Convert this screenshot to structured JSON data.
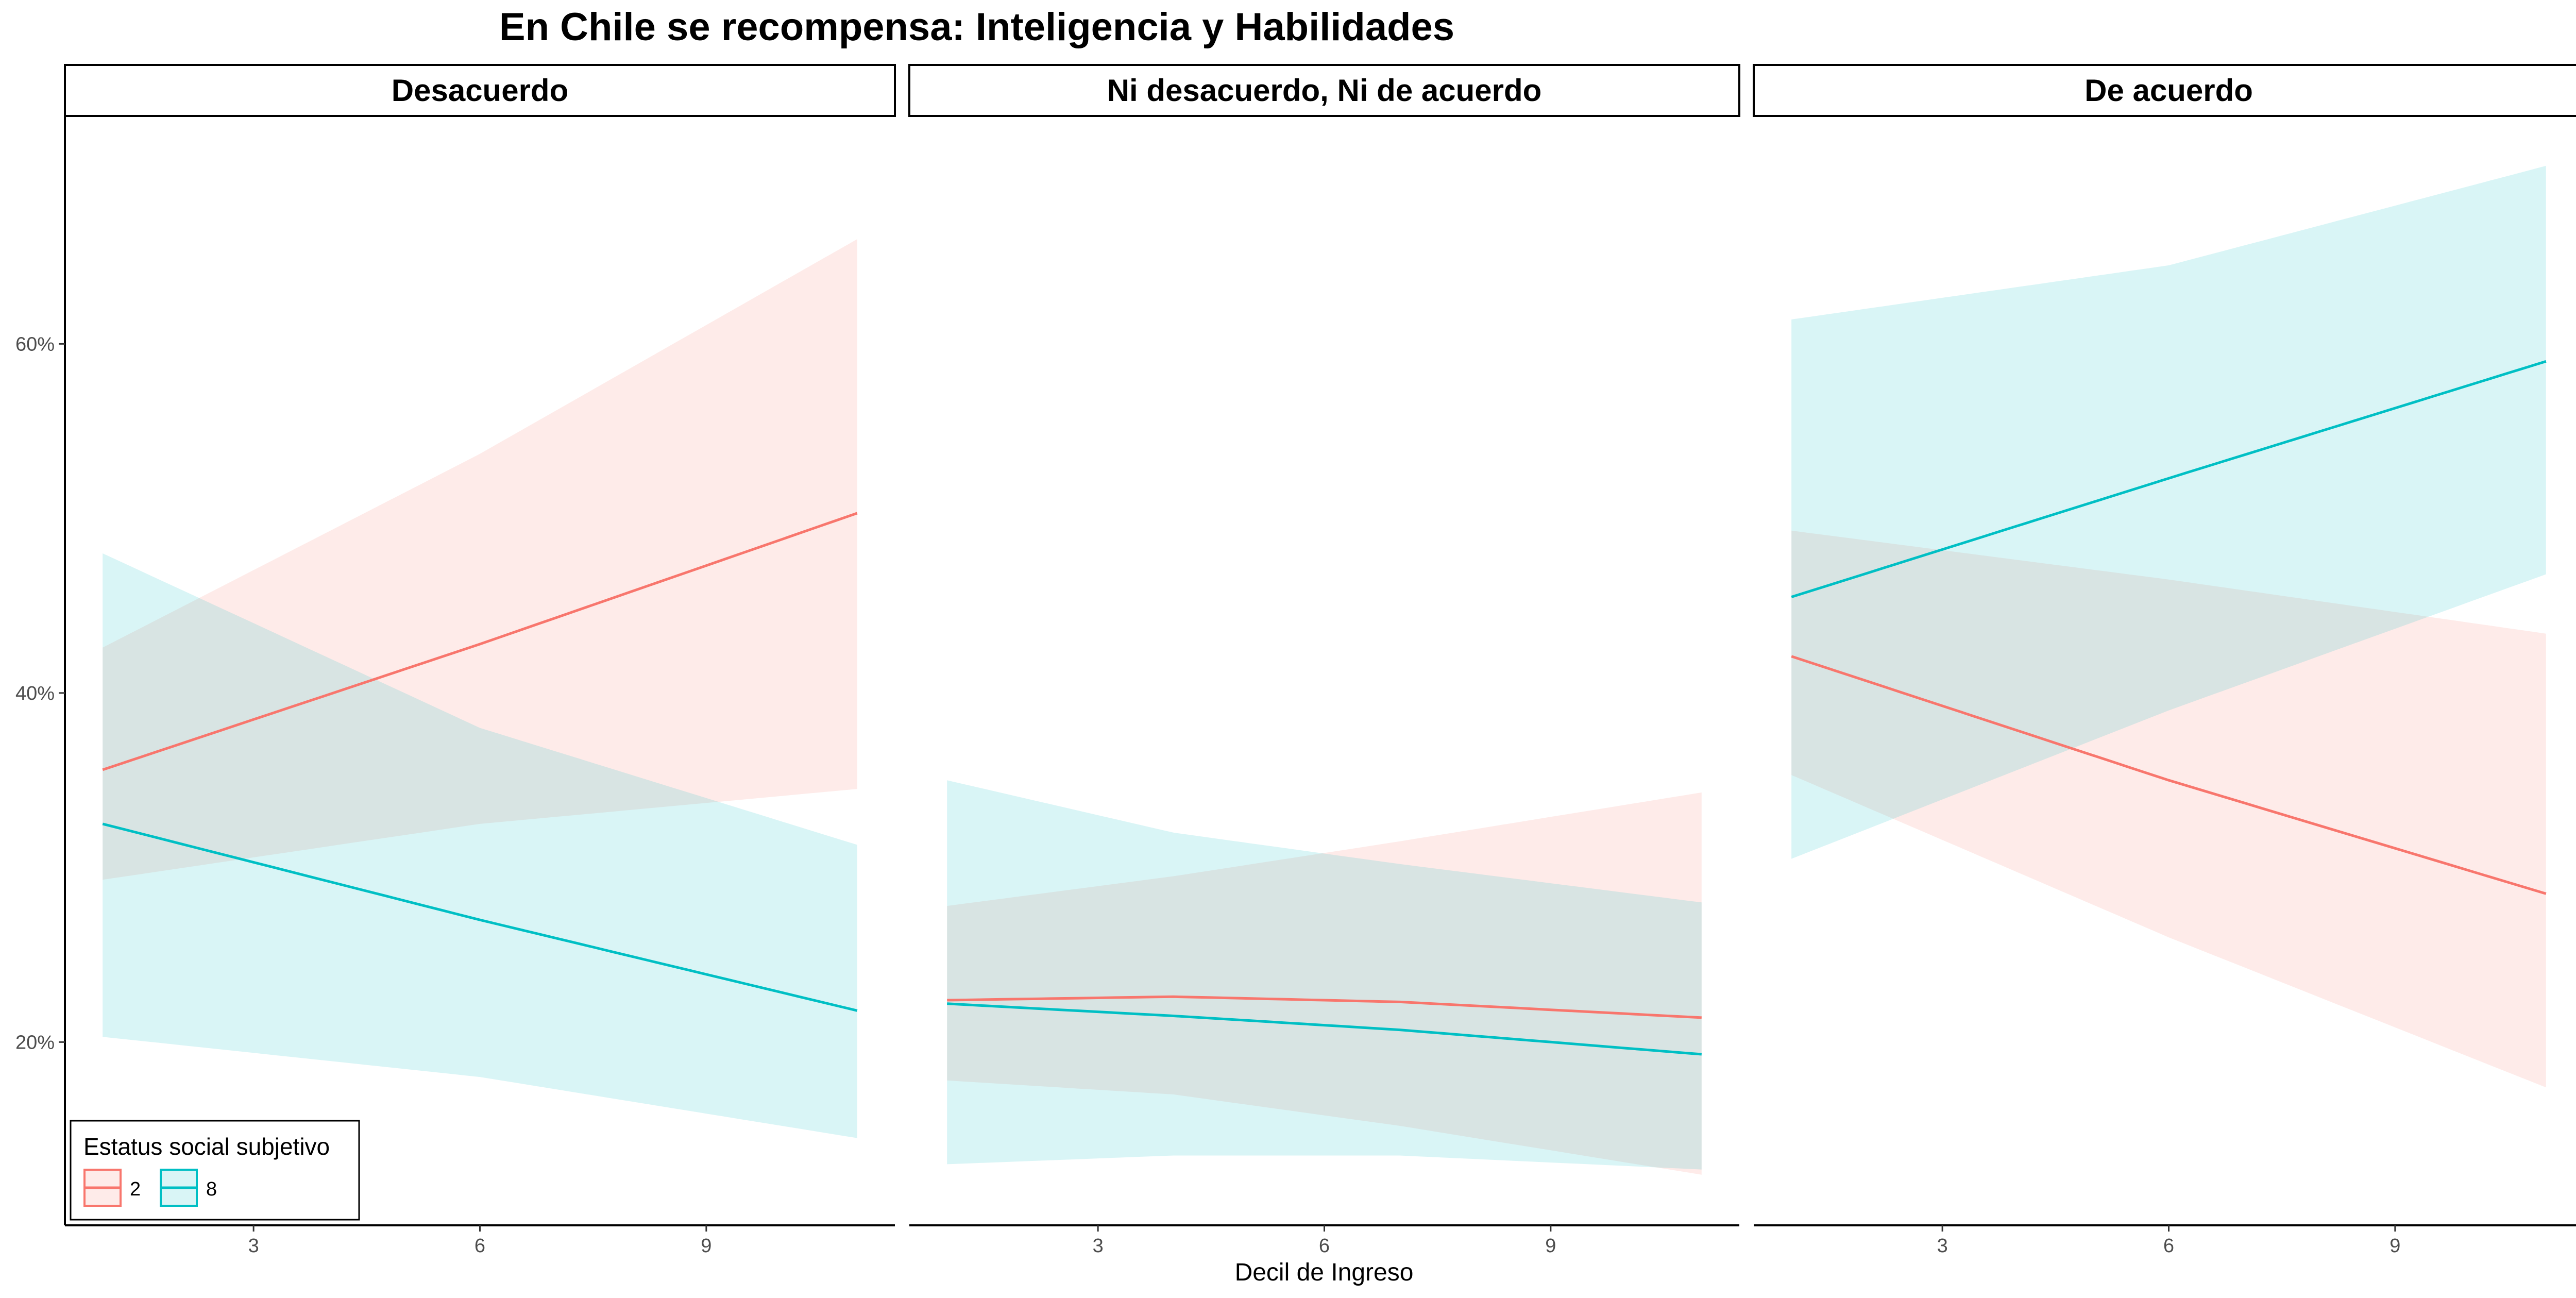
{
  "chart_data": {
    "type": "line",
    "title": "En Chile se recompensa: Inteligencia y Habilidades",
    "xlabel": "Decil de Ingreso",
    "ylabel": "",
    "x_ticks": [
      3,
      6,
      9
    ],
    "y_ticks": [
      0.2,
      0.4,
      0.6
    ],
    "y_tick_labels": [
      "20%",
      "40%",
      "60%"
    ],
    "xlim": [
      0.5,
      11.5
    ],
    "ylim": [
      0.095,
      0.73
    ],
    "grid": false,
    "legend": {
      "title": "Estatus social subjetivo",
      "position": "bottom-left",
      "entries": [
        "2",
        "8"
      ]
    },
    "colors": {
      "2": "#F8766D",
      "8": "#00BFC4"
    },
    "ribbon_alpha": 0.15,
    "facets": [
      {
        "label": "Desacuerdo",
        "series": [
          {
            "name": "2",
            "x": [
              1,
              6,
              11
            ],
            "y": [
              0.356,
              0.428,
              0.503
            ],
            "lower": [
              0.293,
              0.325,
              0.345
            ],
            "upper": [
              0.426,
              0.537,
              0.66
            ]
          },
          {
            "name": "8",
            "x": [
              1,
              6,
              11
            ],
            "y": [
              0.325,
              0.27,
              0.218
            ],
            "lower": [
              0.203,
              0.18,
              0.145
            ],
            "upper": [
              0.48,
              0.38,
              0.313
            ]
          }
        ]
      },
      {
        "label": "Ni desacuerdo, Ni de acuerdo",
        "series": [
          {
            "name": "2",
            "x": [
              1,
              4,
              7,
              11
            ],
            "y": [
              0.224,
              0.226,
              0.223,
              0.214
            ],
            "lower": [
              0.178,
              0.17,
              0.152,
              0.124
            ],
            "upper": [
              0.278,
              0.295,
              0.315,
              0.343
            ]
          },
          {
            "name": "8",
            "x": [
              1,
              4,
              7,
              11
            ],
            "y": [
              0.222,
              0.215,
              0.207,
              0.193
            ],
            "lower": [
              0.13,
              0.135,
              0.135,
              0.127
            ],
            "upper": [
              0.35,
              0.32,
              0.302,
              0.28
            ]
          }
        ]
      },
      {
        "label": "De acuerdo",
        "series": [
          {
            "name": "2",
            "x": [
              1,
              6,
              11
            ],
            "y": [
              0.421,
              0.35,
              0.285
            ],
            "lower": [
              0.353,
              0.26,
              0.174
            ],
            "upper": [
              0.493,
              0.465,
              0.434
            ]
          },
          {
            "name": "8",
            "x": [
              1,
              6,
              11
            ],
            "y": [
              0.455,
              0.523,
              0.59
            ],
            "lower": [
              0.305,
              0.39,
              0.468
            ],
            "upper": [
              0.614,
              0.645,
              0.702
            ]
          }
        ]
      }
    ]
  }
}
